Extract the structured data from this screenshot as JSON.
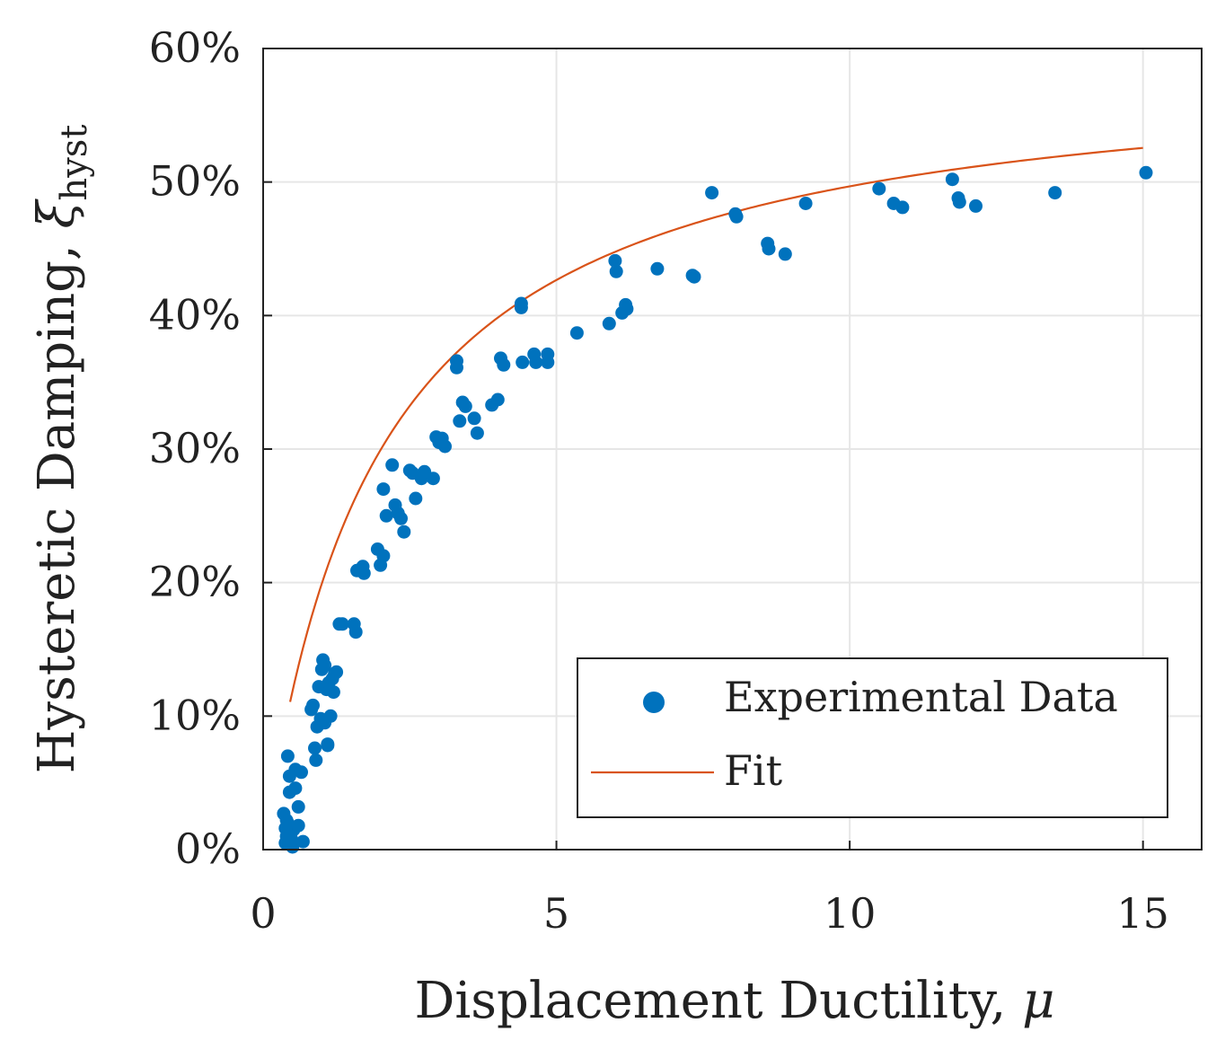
{
  "chart_data": {
    "type": "scatter",
    "title": "",
    "xlabel": "Displacement Ductility, ",
    "xlabel_symbol": "μ",
    "ylabel": "Hysteretic Damping, ",
    "ylabel_symbol": "ξ",
    "ylabel_subscript": "hyst",
    "xlim": [
      0,
      16
    ],
    "ylim": [
      0,
      60
    ],
    "xticks": [
      0,
      5,
      10,
      15
    ],
    "xtick_labels": [
      "0",
      "5",
      "10",
      "15"
    ],
    "yticks": [
      0,
      10,
      20,
      30,
      40,
      50,
      60
    ],
    "ytick_labels": [
      "0%",
      "10%",
      "20%",
      "30%",
      "40%",
      "50%",
      "60%"
    ],
    "grid": true,
    "legend_position": "bottom-right",
    "colors": {
      "data": "#0072BD",
      "fit": "#D95319",
      "axis": "#222222",
      "grid": "#e6e6e6"
    },
    "series": [
      {
        "name": "Experimental Data",
        "kind": "scatter",
        "x": [
          0.35,
          0.38,
          0.4,
          0.42,
          0.45,
          0.48,
          0.5,
          0.52,
          0.55,
          0.6,
          0.45,
          0.42,
          0.48,
          0.55,
          0.65,
          0.6,
          0.68,
          0.4,
          0.45,
          0.38,
          0.42,
          0.85,
          0.88,
          0.92,
          0.95,
          0.98,
          1.0,
          1.02,
          1.05,
          1.08,
          1.1,
          1.12,
          1.15,
          1.18,
          1.2,
          1.22,
          1.25,
          0.82,
          0.9,
          1.05,
          1.1,
          1.3,
          1.35,
          1.55,
          1.58,
          1.6,
          1.7,
          1.72,
          1.95,
          2.0,
          2.05,
          2.05,
          2.1,
          2.2,
          2.25,
          2.3,
          2.35,
          2.4,
          2.5,
          2.55,
          2.6,
          2.7,
          2.75,
          2.9,
          2.95,
          3.0,
          3.05,
          3.1,
          3.3,
          3.3,
          3.35,
          3.4,
          3.45,
          3.6,
          3.65,
          3.9,
          4.0,
          4.05,
          4.1,
          4.4,
          4.4,
          4.42,
          4.62,
          4.65,
          4.85,
          4.85,
          5.35,
          5.9,
          6.0,
          6.02,
          6.12,
          6.18,
          6.2,
          6.72,
          7.32,
          7.35,
          7.65,
          8.05,
          8.07,
          8.6,
          8.62,
          8.9,
          9.25,
          10.5,
          10.75,
          10.9,
          11.75,
          11.85,
          11.87,
          12.15,
          13.5,
          15.05
        ],
        "y": [
          2.7,
          0.5,
          2.2,
          7.0,
          4.3,
          1.4,
          0.2,
          1.5,
          6.0,
          3.2,
          5.5,
          1.2,
          0.8,
          4.6,
          5.8,
          1.8,
          0.6,
          1.0,
          0.4,
          1.6,
          2.0,
          10.8,
          7.6,
          9.2,
          12.2,
          9.8,
          13.5,
          14.2,
          13.8,
          12.0,
          7.9,
          12.5,
          10.0,
          12.8,
          11.8,
          13.2,
          13.3,
          10.5,
          6.7,
          9.5,
          7.8,
          16.9,
          16.9,
          16.9,
          16.3,
          20.9,
          21.2,
          20.7,
          22.5,
          21.3,
          27.0,
          22.0,
          25.0,
          28.8,
          25.8,
          25.2,
          24.8,
          23.8,
          28.4,
          28.2,
          26.3,
          27.8,
          28.3,
          27.8,
          30.9,
          30.5,
          30.8,
          30.2,
          36.6,
          36.1,
          32.1,
          33.5,
          33.2,
          32.3,
          31.2,
          33.3,
          33.7,
          36.8,
          36.3,
          40.9,
          40.6,
          36.5,
          37.1,
          36.5,
          37.1,
          36.5,
          38.7,
          39.4,
          44.1,
          43.3,
          40.2,
          40.8,
          40.5,
          43.5,
          43.0,
          42.9,
          49.2,
          47.6,
          47.4,
          45.4,
          45.0,
          44.6,
          48.4,
          49.5,
          48.4,
          48.1,
          50.2,
          48.8,
          48.5,
          48.2,
          49.2,
          50.7
        ]
      },
      {
        "name": "Fit",
        "kind": "line",
        "equation": "0.5977*x/(x+1.95)*100 - 0.34",
        "x_range": [
          0.46,
          15.0
        ]
      }
    ]
  }
}
